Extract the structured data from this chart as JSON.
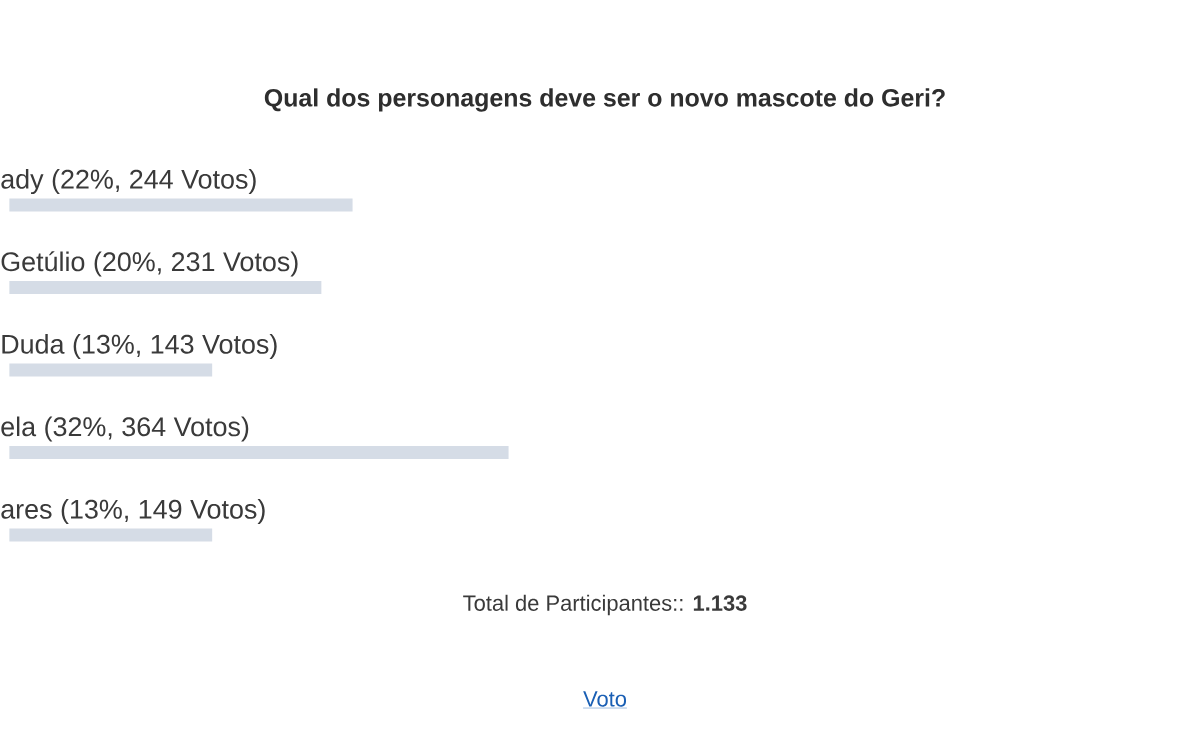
{
  "chart_data": {
    "type": "bar",
    "orientation": "horizontal",
    "title": "Qual dos personagens deve ser o novo mascote do Geri?",
    "categories": [
      "ady",
      "Getúlio",
      "Duda",
      "ela",
      "ares"
    ],
    "values": [
      22,
      20,
      13,
      32,
      13
    ],
    "value_labels": [
      "(22%, 244 Votos)",
      "(20%, 231 Votos)",
      "(13%, 143 Votos)",
      "(32%, 364 Votos)",
      "(13%, 149 Votos)"
    ],
    "color": "#d5dce6",
    "annotations": [
      "Total de Participantes:: **1.133**",
      "Voto"
    ]
  }
}
